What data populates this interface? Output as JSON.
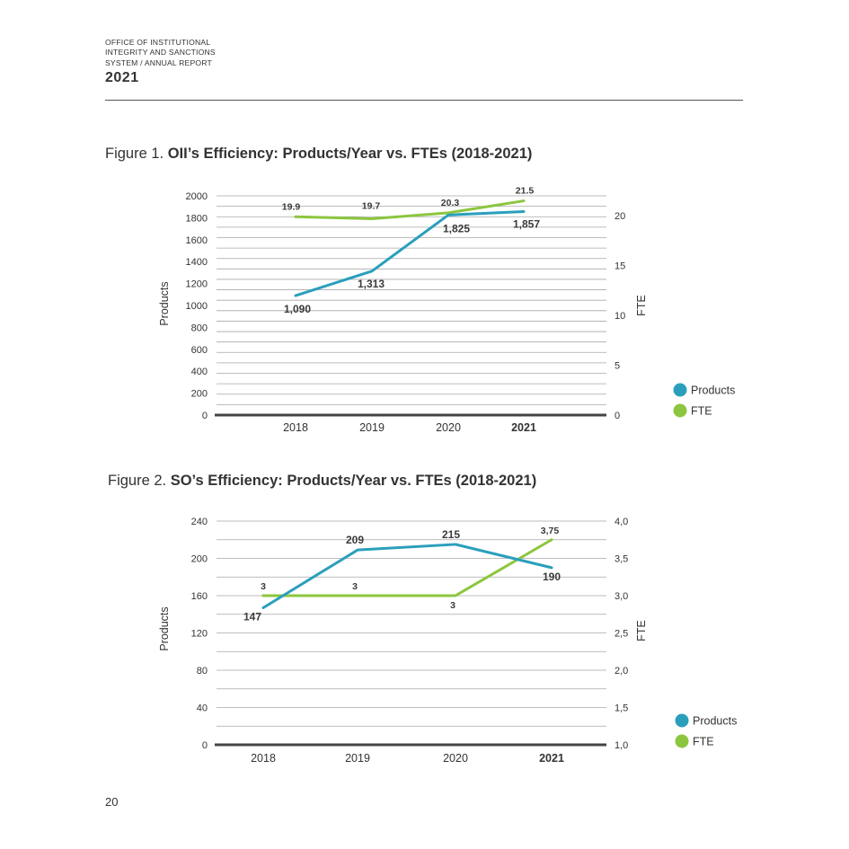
{
  "header": {
    "lines": [
      "OFFICE OF INSTITUTIONAL",
      "INTEGRITY AND SANCTIONS",
      "SYSTEM / ANNUAL REPORT"
    ],
    "year": "2021"
  },
  "page_number": "20",
  "colors": {
    "products": "#2a9fbc",
    "fte": "#8cc63f",
    "axis": "#444444",
    "grid": "#a8a8a8",
    "text": "#333333"
  },
  "chart_data": [
    {
      "type": "line",
      "figure_label": "Figure 1.",
      "title": "OII’s Efficiency: Products/Year vs. FTEs (2018-2021)",
      "categories": [
        "2018",
        "2019",
        "2020",
        "2021"
      ],
      "ylabel": "Products",
      "y2label": "FTE",
      "ylim": [
        0,
        2000
      ],
      "y_ticks": [
        "0",
        "200",
        "400",
        "600",
        "800",
        "1000",
        "1200",
        "1400",
        "1600",
        "1800",
        "2000"
      ],
      "y2lim": [
        0,
        22
      ],
      "y2_ticks": [
        {
          "value": 0,
          "label": "0"
        },
        {
          "value": 5,
          "label": "5"
        },
        {
          "value": 10,
          "label": "10"
        },
        {
          "value": 15,
          "label": "15"
        },
        {
          "value": 20,
          "label": "20"
        }
      ],
      "series": [
        {
          "name": "Products",
          "axis": "left",
          "values": [
            1090,
            1313,
            1825,
            1857
          ],
          "labels": [
            "1,090",
            "1,313",
            "1,825",
            "1,857"
          ]
        },
        {
          "name": "FTE",
          "axis": "right",
          "values": [
            19.9,
            19.7,
            20.3,
            21.5
          ],
          "labels": [
            "19.9",
            "19.7",
            "20.3",
            "21.5"
          ]
        }
      ],
      "legend": [
        "Products",
        "FTE"
      ],
      "legend_position": "right"
    },
    {
      "type": "line",
      "figure_label": "Figure 2.",
      "title": "SO’s Efficiency: Products/Year vs. FTEs (2018-2021)",
      "categories": [
        "2018",
        "2019",
        "2020",
        "2021"
      ],
      "ylabel": "Products",
      "y2label": "FTE",
      "ylim": [
        0,
        240
      ],
      "y_ticks": [
        "0",
        "40",
        "80",
        "120",
        "160",
        "200",
        "240"
      ],
      "y2lim": [
        1.0,
        4.0
      ],
      "y2_ticks": [
        {
          "value": 1.0,
          "label": "1,0"
        },
        {
          "value": 1.5,
          "label": "1,5"
        },
        {
          "value": 2.0,
          "label": "2,0"
        },
        {
          "value": 2.5,
          "label": "2,5"
        },
        {
          "value": 3.0,
          "label": "3,0"
        },
        {
          "value": 3.5,
          "label": "3,5"
        },
        {
          "value": 4.0,
          "label": "4,0"
        }
      ],
      "series": [
        {
          "name": "Products",
          "axis": "left",
          "values": [
            147,
            209,
            215,
            190
          ],
          "labels": [
            "147",
            "209",
            "215",
            "190"
          ]
        },
        {
          "name": "FTE",
          "axis": "right",
          "values": [
            3,
            3,
            3,
            3.75
          ],
          "labels": [
            "3",
            "3",
            "3",
            "3,75"
          ]
        }
      ],
      "legend": [
        "Products",
        "FTE"
      ],
      "legend_position": "right"
    }
  ]
}
